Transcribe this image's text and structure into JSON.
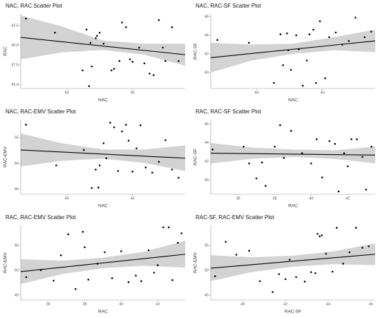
{
  "chart_data": [
    {
      "type": "scatter",
      "title": "NAC, RAC Scatter Plot",
      "xlabel": "NAC",
      "ylabel": "RAC",
      "color": "#000000",
      "line_color": "#000000",
      "band_color": "#d3d3d3",
      "x": [
        36.9,
        39.1,
        41.2,
        41.9,
        41.5,
        41.8,
        42.2,
        42.5,
        42.3,
        42.8,
        43.4,
        43.6,
        44.0,
        44.2,
        44.5,
        44.8,
        45.0,
        45.5,
        45.9,
        46.3,
        46.6,
        47.0,
        47.3,
        47.5,
        48.0,
        48.5,
        41.7
      ],
      "y": [
        43.4,
        41.6,
        36.8,
        37.3,
        42.0,
        40.3,
        40.9,
        41.6,
        41.2,
        40.2,
        36.8,
        37.0,
        38.0,
        42.9,
        42.3,
        38.2,
        37.9,
        39.7,
        37.7,
        36.4,
        36.2,
        43.2,
        39.7,
        38.0,
        42.3,
        38.0,
        34.8
      ],
      "xlim": [
        36.5,
        49
      ],
      "ylim": [
        34.5,
        44
      ],
      "xticks": [
        40,
        45
      ],
      "yticks": [
        {
          "value": 35,
          "label": "35.0"
        },
        37.5,
        {
          "value": 40,
          "label": "40.0"
        },
        42.5
      ],
      "trend": {
        "x": [
          36.5,
          49
        ],
        "y": [
          41.0,
          38.8
        ]
      },
      "band": {
        "x": [
          36.5,
          39.625,
          42.75,
          45.875,
          49
        ],
        "lower": [
          38.2,
          39.1,
          39.4,
          38.8,
          37.4
        ],
        "upper": [
          43.8,
          42.4,
          40.6,
          40.2,
          40.2
        ]
      }
    },
    {
      "type": "scatter",
      "title": "NAC, RAC-SF Scatter Plot",
      "xlabel": "NAC",
      "ylabel": "RAC-SF",
      "color": "#000000",
      "line_color": "#000000",
      "band_color": "#d3d3d3",
      "x": [
        37.0,
        39.4,
        41.3,
        41.8,
        42.0,
        42.3,
        42.6,
        42.4,
        43.0,
        43.2,
        43.5,
        43.8,
        44.0,
        44.3,
        44.5,
        44.8,
        45.2,
        45.5,
        46.0,
        46.5,
        47.0,
        47.5,
        48.2,
        48.7
      ],
      "y": [
        43.5,
        43.2,
        38.9,
        44.1,
        40.8,
        44.2,
        40.3,
        42.4,
        44.0,
        42.5,
        38.6,
        41.3,
        44.1,
        44.6,
        38.9,
        45.5,
        39.4,
        43.8,
        44.3,
        43.0,
        43.4,
        45.9,
        43.8,
        44.4
      ],
      "xlim": [
        36.5,
        49
      ],
      "ylim": [
        38.3,
        46.3
      ],
      "xticks": [
        40,
        45
      ],
      "yticks": [
        40,
        42,
        44,
        46
      ],
      "trend": {
        "x": [
          36.5,
          49
        ],
        "y": [
          41.6,
          43.4
        ]
      },
      "band": {
        "x": [
          36.5,
          39.625,
          42.75,
          45.875,
          49
        ],
        "lower": [
          40.0,
          41.3,
          42.0,
          42.4,
          42.2
        ],
        "upper": [
          43.2,
          43.0,
          43.1,
          43.8,
          44.6
        ]
      }
    },
    {
      "type": "scatter",
      "title": "NAC, RAC-EMV Scatter Plot",
      "xlabel": "NAC",
      "ylabel": "RAC-EMV",
      "color": "#000000",
      "line_color": "#000000",
      "band_color": "#d3d3d3",
      "x": [
        36.9,
        39.2,
        41.3,
        41.9,
        42.2,
        42.5,
        42.8,
        42.4,
        43.0,
        43.3,
        43.6,
        43.9,
        44.2,
        44.5,
        44.7,
        45.0,
        45.3,
        45.6,
        46.0,
        46.5,
        47.0,
        47.5,
        48.0,
        48.5
      ],
      "y": [
        57.5,
        49.6,
        52.6,
        45.2,
        48.8,
        49.6,
        53.9,
        45.3,
        51.0,
        57.9,
        57.0,
        48.5,
        56.2,
        57.5,
        54.4,
        48.4,
        52.9,
        57.4,
        49.2,
        48.2,
        50.3,
        54.5,
        48.8,
        47.2
      ],
      "xlim": [
        36.5,
        49
      ],
      "ylim": [
        44,
        58.5
      ],
      "xticks": [
        40,
        45
      ],
      "yticks": [
        45,
        50,
        55
      ],
      "trend": {
        "x": [
          36.5,
          49
        ],
        "y": [
          52.6,
          51.0
        ]
      },
      "band": {
        "x": [
          36.5,
          39.625,
          42.75,
          45.875,
          49
        ],
        "lower": [
          49.4,
          50.5,
          50.9,
          50.1,
          48.5
        ],
        "upper": [
          55.8,
          53.9,
          52.7,
          52.7,
          53.5
        ]
      }
    },
    {
      "type": "scatter",
      "title": "RAC, RAC-SF Scatter Plot",
      "xlabel": "RAC",
      "ylabel": "RAC-SF",
      "color": "#000000",
      "line_color": "#000000",
      "band_color": "#d3d3d3",
      "x": [
        34.6,
        36.3,
        36.6,
        37.0,
        37.3,
        37.5,
        38.0,
        38.3,
        38.5,
        38.9,
        39.5,
        40.0,
        40.3,
        40.6,
        41.0,
        41.3,
        41.5,
        41.8,
        42.0,
        42.2,
        42.5,
        42.8,
        43.0,
        43.3
      ],
      "y": [
        43.3,
        43.6,
        41.8,
        40.2,
        41.9,
        39.4,
        43.6,
        45.9,
        42.4,
        45.3,
        42.9,
        41.8,
        44.4,
        40.3,
        44.2,
        43.9,
        38.8,
        42.9,
        41.5,
        44.4,
        44.4,
        42.5,
        39.0,
        43.6
      ],
      "xlim": [
        34.5,
        43.5
      ],
      "ylim": [
        38.5,
        46.5
      ],
      "xticks": [
        36,
        38,
        40,
        42
      ],
      "yticks": [
        40,
        42,
        44,
        46
      ],
      "trend": {
        "x": [
          34.5,
          43.5
        ],
        "y": [
          42.9,
          42.7
        ]
      },
      "band": {
        "x": [
          34.5,
          36.75,
          39,
          41.25,
          43.5
        ],
        "lower": [
          41.8,
          42.3,
          42.5,
          42.3,
          41.8
        ],
        "upper": [
          44.0,
          43.5,
          43.3,
          43.2,
          43.6
        ]
      }
    },
    {
      "type": "scatter",
      "title": "RAC, RAC-EMV Scatter Plot",
      "xlabel": "RAC",
      "ylabel": "RAC-EMV",
      "color": "#000000",
      "line_color": "#000000",
      "band_color": "#d3d3d3",
      "x": [
        34.8,
        35.6,
        36.3,
        36.7,
        37.1,
        37.5,
        37.9,
        38.2,
        38.7,
        39.1,
        39.5,
        40.0,
        40.4,
        40.8,
        41.1,
        41.5,
        41.8,
        42.0,
        42.3,
        42.6,
        42.8,
        43.1,
        43.3,
        38.0
      ],
      "y": [
        48.6,
        50.0,
        47.9,
        53.0,
        57.2,
        46.2,
        57.7,
        48.1,
        51.3,
        53.6,
        48.4,
        53.8,
        47.6,
        48.9,
        47.8,
        54.0,
        49.5,
        51.0,
        58.6,
        58.6,
        48.0,
        55.5,
        57.4,
        54.6
      ],
      "xlim": [
        34.5,
        43.5
      ],
      "ylim": [
        44,
        59
      ],
      "xticks": [
        36,
        38,
        40,
        42
      ],
      "yticks": [
        45,
        50,
        55
      ],
      "trend": {
        "x": [
          34.5,
          43.5
        ],
        "y": [
          49.7,
          53.2
        ]
      },
      "band": {
        "x": [
          34.5,
          36.75,
          39,
          41.25,
          43.5
        ],
        "lower": [
          47.2,
          49.2,
          50.4,
          50.9,
          50.5
        ],
        "upper": [
          52.2,
          51.9,
          52.5,
          53.7,
          55.9
        ]
      }
    },
    {
      "type": "scatter",
      "title": "RAC-SF, RAC-EMV Scatter Plot",
      "xlabel": "RAC-SF",
      "ylabel": "RAC-EMV",
      "color": "#000000",
      "line_color": "#000000",
      "band_color": "#d3d3d3",
      "x": [
        38.7,
        39.2,
        39.7,
        40.3,
        40.8,
        41.4,
        41.7,
        42.2,
        42.5,
        42.9,
        43.2,
        43.4,
        43.5,
        43.7,
        43.9,
        44.2,
        44.4,
        44.7,
        45.0,
        45.3,
        45.6,
        45.9,
        42.0,
        43.6
      ],
      "y": [
        48.8,
        55.7,
        53.1,
        53.9,
        47.8,
        45.6,
        49.2,
        52.1,
        48.6,
        47.7,
        49.6,
        49.4,
        57.3,
        57.0,
        53.3,
        49.7,
        58.5,
        51.3,
        53.6,
        58.5,
        54.5,
        54.8,
        48.2,
        56.8
      ],
      "xlim": [
        38.5,
        46.2
      ],
      "ylim": [
        44,
        59
      ],
      "xticks": [
        40,
        42,
        44,
        46
      ],
      "yticks": [
        45,
        50,
        55
      ],
      "trend": {
        "x": [
          38.5,
          46.2
        ],
        "y": [
          50.4,
          53.2
        ]
      },
      "band": {
        "x": [
          38.5,
          40.425,
          42.35,
          44.275,
          46.2
        ],
        "lower": [
          47.8,
          49.6,
          50.7,
          51.2,
          51.0
        ],
        "upper": [
          53.0,
          52.6,
          52.9,
          53.8,
          55.4
        ]
      }
    }
  ]
}
